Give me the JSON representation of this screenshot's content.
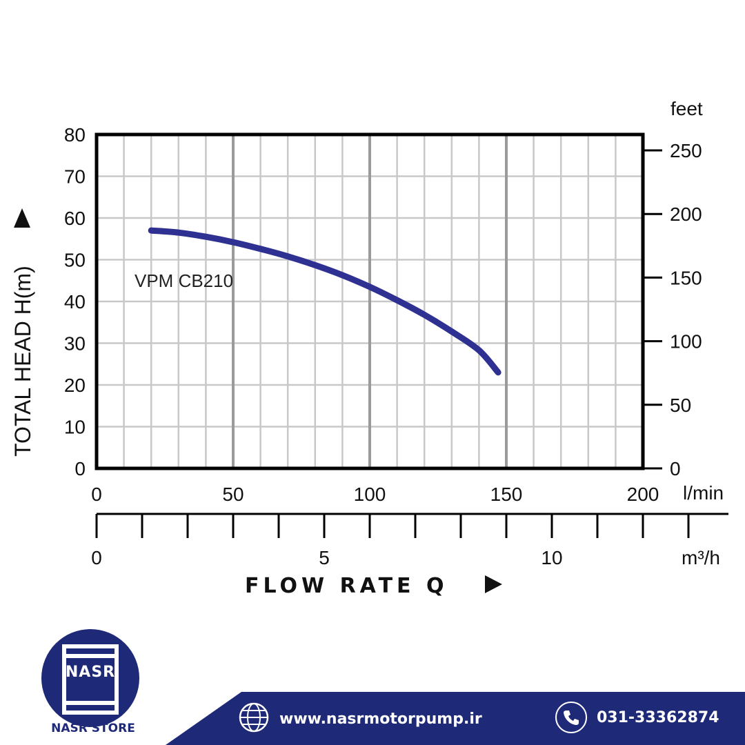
{
  "chart_data": {
    "type": "line",
    "xlabel": "FLOW   RATE Q",
    "ylabel": "TOTAL HEAD H(m)",
    "x_unit": "l/min",
    "x_secondary_unit": "m³/h",
    "y_right_unit": "feet",
    "xlim": [
      0,
      200
    ],
    "ylim": [
      0,
      80
    ],
    "x_ticks": [
      "0",
      "50",
      "100",
      "150",
      "200"
    ],
    "y_ticks": [
      "0",
      "10",
      "20",
      "30",
      "40",
      "50",
      "60",
      "70",
      "80"
    ],
    "y_right_ticks": [
      "0",
      "50",
      "100",
      "150",
      "200",
      "250"
    ],
    "x_secondary_ticks": [
      "0",
      "5",
      "10"
    ],
    "grid": true,
    "series": [
      {
        "name": "VPM CB210",
        "color": "#2e3192",
        "x": [
          20,
          30,
          40,
          50,
          60,
          70,
          80,
          90,
          100,
          110,
          120,
          130,
          140,
          147
        ],
        "y": [
          57,
          56.5,
          55.5,
          54.2,
          52.6,
          50.8,
          48.7,
          46.3,
          43.5,
          40.3,
          36.8,
          32.8,
          28.3,
          23
        ]
      }
    ]
  },
  "branding": {
    "logo_text": "NASR",
    "store_name": "NASR STORE",
    "website": "www.nasrmotorpump.ir",
    "phone": "031-33362874",
    "brand_color": "#1e2a78",
    "web_icon": "globe-icon",
    "phone_icon": "phone-icon"
  }
}
